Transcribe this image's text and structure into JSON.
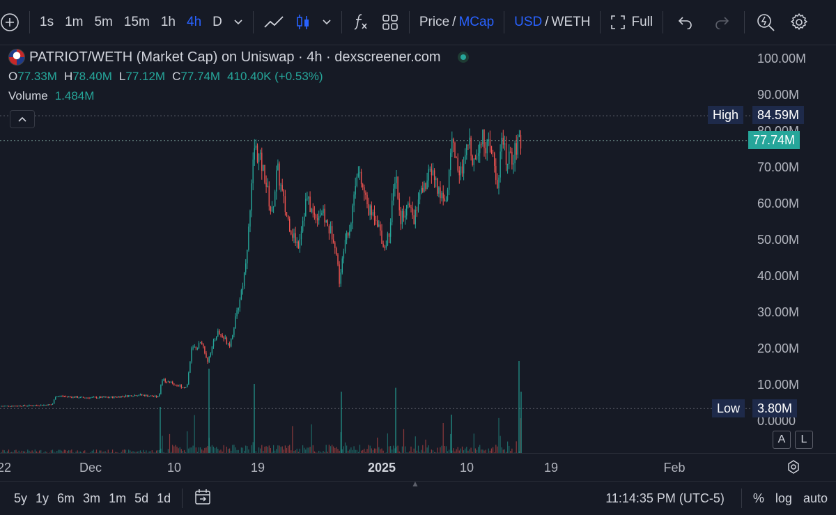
{
  "toolbar": {
    "intervals": [
      "1s",
      "1m",
      "5m",
      "15m",
      "1h",
      "4h",
      "D"
    ],
    "active_interval": "4h",
    "price_label": "Price",
    "slash": "/",
    "mcap_label": "MCap",
    "usd_label": "USD",
    "weth_label": "WETH",
    "full_label": "Full",
    "accent_color": "#2962ff"
  },
  "legend": {
    "title": "PATRIOT/WETH (Market Cap) on Uniswap · 4h · dexscreener.com",
    "open_key": "O",
    "open": "77.33M",
    "high_key": "H",
    "high": "78.40M",
    "low_key": "L",
    "low": "77.12M",
    "close_key": "C",
    "close": "77.74M",
    "change": "410.40K (+0.53%)",
    "volume_key": "Volume",
    "volume": "1.484M"
  },
  "price_axis": {
    "labels": [
      "100.00M",
      "90.00M",
      "80.00M",
      "70.00M",
      "60.00M",
      "50.00M",
      "40.00M",
      "30.00M",
      "20.00M",
      "10.00M",
      "0.0000"
    ],
    "high_key": "High",
    "high_value": "84.59M",
    "last_value": "77.74M",
    "low_key": "Low",
    "low_value": "3.80M",
    "btn_a": "A",
    "btn_l": "L"
  },
  "time_axis": {
    "labels": [
      "22",
      "Dec",
      "10",
      "19",
      "2025",
      "10",
      "19",
      "Feb"
    ]
  },
  "bottom": {
    "ranges": [
      "5y",
      "1y",
      "6m",
      "3m",
      "1m",
      "5d",
      "1d"
    ],
    "time": "11:14:35 PM (UTC-5)",
    "percent": "%",
    "log": "log",
    "auto": "auto"
  },
  "colors": {
    "up": "#26a69a",
    "down": "#ef5350",
    "background": "#161a25"
  },
  "chart_data": {
    "type": "candlestick",
    "title": "PATRIOT/WETH (Market Cap) on Uniswap · 4h · dexscreener.com",
    "unit": "USD market cap (M)",
    "ylim": [
      0,
      100
    ],
    "y_ticks": [
      0,
      10,
      20,
      30,
      40,
      50,
      60,
      70,
      80,
      90,
      100
    ],
    "grid": false,
    "x_ticks": [
      "22",
      "Dec",
      "10",
      "19",
      "2025",
      "10",
      "19",
      "Feb"
    ],
    "high_marker": 84.59,
    "low_marker": 3.8,
    "last_price": 77.74,
    "path_close": [
      [
        0,
        4.5
      ],
      [
        40,
        4.6
      ],
      [
        75,
        4.9
      ],
      [
        80,
        7.3
      ],
      [
        120,
        6.8
      ],
      [
        160,
        6.9
      ],
      [
        200,
        7.6
      ],
      [
        228,
        7.0
      ],
      [
        232,
        12.0
      ],
      [
        250,
        10.5
      ],
      [
        268,
        9.5
      ],
      [
        275,
        20.0
      ],
      [
        290,
        22.0
      ],
      [
        298,
        17.0
      ],
      [
        312,
        25.0
      ],
      [
        330,
        21.5
      ],
      [
        340,
        30.0
      ],
      [
        350,
        40.0
      ],
      [
        358,
        55.0
      ],
      [
        365,
        76.0
      ],
      [
        372,
        73.0
      ],
      [
        380,
        68.0
      ],
      [
        390,
        57.0
      ],
      [
        398,
        70.0
      ],
      [
        410,
        58.0
      ],
      [
        420,
        52.0
      ],
      [
        428,
        49.0
      ],
      [
        440,
        62.0
      ],
      [
        450,
        57.0
      ],
      [
        462,
        58.0
      ],
      [
        470,
        54.0
      ],
      [
        480,
        51.0
      ],
      [
        488,
        38.0
      ],
      [
        495,
        52.0
      ],
      [
        503,
        54.0
      ],
      [
        512,
        70.0
      ],
      [
        520,
        65.0
      ],
      [
        530,
        58.0
      ],
      [
        540,
        57.0
      ],
      [
        552,
        48.0
      ],
      [
        560,
        54.0
      ],
      [
        568,
        70.0
      ],
      [
        574,
        56.0
      ],
      [
        585,
        60.0
      ],
      [
        595,
        56.0
      ],
      [
        602,
        62.0
      ],
      [
        612,
        66.0
      ],
      [
        620,
        70.0
      ],
      [
        630,
        63.0
      ],
      [
        642,
        62.0
      ],
      [
        648,
        79.0
      ],
      [
        655,
        72.0
      ],
      [
        664,
        68.0
      ],
      [
        673,
        78.0
      ],
      [
        680,
        72.0
      ],
      [
        690,
        79.0
      ],
      [
        700,
        76.0
      ],
      [
        708,
        73.0
      ],
      [
        714,
        65.0
      ],
      [
        720,
        78.0
      ],
      [
        728,
        72.0
      ],
      [
        735,
        73.0
      ],
      [
        742,
        76.0
      ],
      [
        748,
        77.74
      ]
    ],
    "volume_spikes": [
      [
        230,
        12
      ],
      [
        300,
        22
      ],
      [
        365,
        18
      ],
      [
        490,
        16
      ],
      [
        568,
        17
      ],
      [
        648,
        10
      ],
      [
        745,
        24
      ],
      [
        748,
        16
      ]
    ]
  }
}
